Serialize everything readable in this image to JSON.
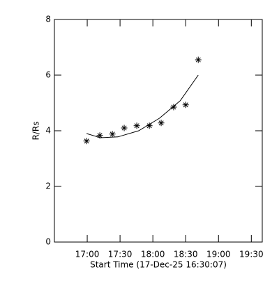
{
  "chart_data": {
    "type": "scatter",
    "xlabel": "Start Time (17-Dec-25 16:30:07)",
    "ylabel": "R/Rs",
    "xlim": [
      0,
      190
    ],
    "ylim": [
      0,
      8
    ],
    "xticks": [
      {
        "value": 30,
        "label": "17:00"
      },
      {
        "value": 60,
        "label": "17:30"
      },
      {
        "value": 90,
        "label": "18:00"
      },
      {
        "value": 120,
        "label": "18:30"
      },
      {
        "value": 150,
        "label": "19:00"
      },
      {
        "value": 180,
        "label": "19:30"
      }
    ],
    "yticks": [
      0,
      2,
      4,
      6,
      8
    ],
    "color": "#000000",
    "x": [
      29.4,
      41.5,
      53,
      63.8,
      75.3,
      86.8,
      97.6,
      109,
      120,
      131.5
    ],
    "values": [
      3.63,
      3.83,
      3.88,
      4.1,
      4.18,
      4.18,
      4.28,
      4.85,
      4.93,
      6.55
    ],
    "fit": {
      "x": [
        29.4,
        42,
        58,
        77,
        96,
        115,
        131.5
      ],
      "values": [
        3.9,
        3.75,
        3.78,
        4.0,
        4.45,
        5.08,
        6.0
      ]
    }
  }
}
